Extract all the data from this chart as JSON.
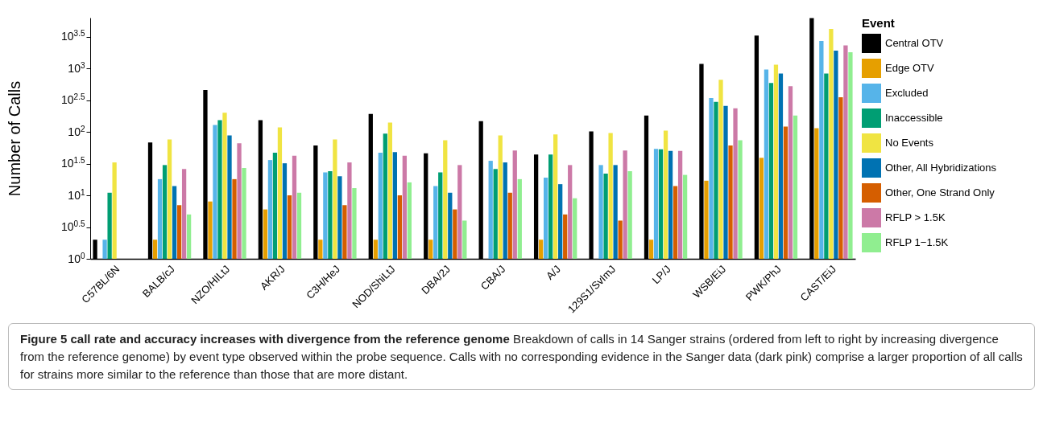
{
  "chart_data": {
    "type": "bar",
    "title": "Figure 5 call rate and accuracy increases with divergence from the reference genome",
    "annotations": [
      "Breakdown of calls in 14 Sanger strains (ordered from left to right by increasing divergence from the reference genome) by event type observed within the probe sequence. Calls with no corresponding evidence in the Sanger data (dark pink) comprise a larger proportion of all calls for strains more similar to the reference than those that are more distant."
    ],
    "ylabel": "Number of Calls",
    "legend_title": "Event",
    "legend": "right",
    "log": true,
    "grid": false,
    "categories": [
      "C57BL/6N",
      "BALB/cJ",
      "NZO/HILtJ",
      "AKR/J",
      "C3H/HeJ",
      "NOD/ShiLtJ",
      "DBA/2J",
      "CBA/J",
      "A/J",
      "129S1/SvImJ",
      "LP/J",
      "WSB/EiJ",
      "PWK/PhJ",
      "CAST/EiJ"
    ],
    "ylim": [
      1,
      6300
    ],
    "yticks": [
      {
        "value": 1,
        "label": "10$^{0}$"
      },
      {
        "value": 3.162,
        "label": "10$^{0.5}$"
      },
      {
        "value": 10,
        "label": "10$^{1}$"
      },
      {
        "value": 31.62,
        "label": "10$^{1.5}$"
      },
      {
        "value": 100,
        "label": "10$^{2}$"
      },
      {
        "value": 316.2,
        "label": "10$^{2.5}$"
      },
      {
        "value": 1000,
        "label": "10$^{3}$"
      },
      {
        "value": 3162,
        "label": "10$^{3.5}$"
      }
    ],
    "series": [
      {
        "name": "Central OTV",
        "color": "#000000",
        "values": [
          2,
          68,
          455,
          153,
          61,
          192,
          46,
          148,
          44,
          102,
          181,
          1180,
          3300,
          6200
        ]
      },
      {
        "name": "Edge OTV",
        "color": "#e69f00",
        "values": [
          null,
          2,
          8,
          6,
          2,
          2,
          2,
          null,
          2,
          null,
          2,
          17,
          39,
          114
        ]
      },
      {
        "name": "Excluded",
        "color": "#56b4e9",
        "values": [
          2,
          18,
          128,
          36,
          23,
          47,
          14,
          35,
          19,
          30,
          54,
          340,
          960,
          2700
        ]
      },
      {
        "name": "Inaccessible",
        "color": "#009e73",
        "values": [
          11,
          30,
          153,
          47,
          24,
          94,
          23,
          26,
          44,
          22,
          53,
          296,
          590,
          830
        ]
      },
      {
        "name": "No Events",
        "color": "#f0e442",
        "values": [
          33,
          76,
          200,
          118,
          76,
          140,
          74,
          88,
          91,
          96,
          105,
          660,
          1140,
          4200
        ]
      },
      {
        "name": "Other, All Hybridizations",
        "color": "#0072b2",
        "values": [
          null,
          14,
          88,
          32,
          20,
          48,
          11,
          33,
          15,
          30,
          50,
          256,
          830,
          1900
        ]
      },
      {
        "name": "Other, One Strand Only",
        "color": "#d55e00",
        "values": [
          null,
          7,
          18,
          10,
          7,
          10,
          6,
          11,
          5,
          4,
          14,
          61,
          121,
          350
        ]
      },
      {
        "name": "RFLP > 1.5K",
        "color": "#cc79a7",
        "values": [
          null,
          26,
          66,
          42,
          33,
          42,
          30,
          51,
          30,
          51,
          50,
          235,
          526,
          2300
        ]
      },
      {
        "name": "RFLP 1−1.5K",
        "color": "#90ee90",
        "values": [
          null,
          5,
          27,
          11,
          13,
          16,
          4,
          18,
          9,
          24,
          21,
          74,
          181,
          1800
        ]
      }
    ]
  }
}
